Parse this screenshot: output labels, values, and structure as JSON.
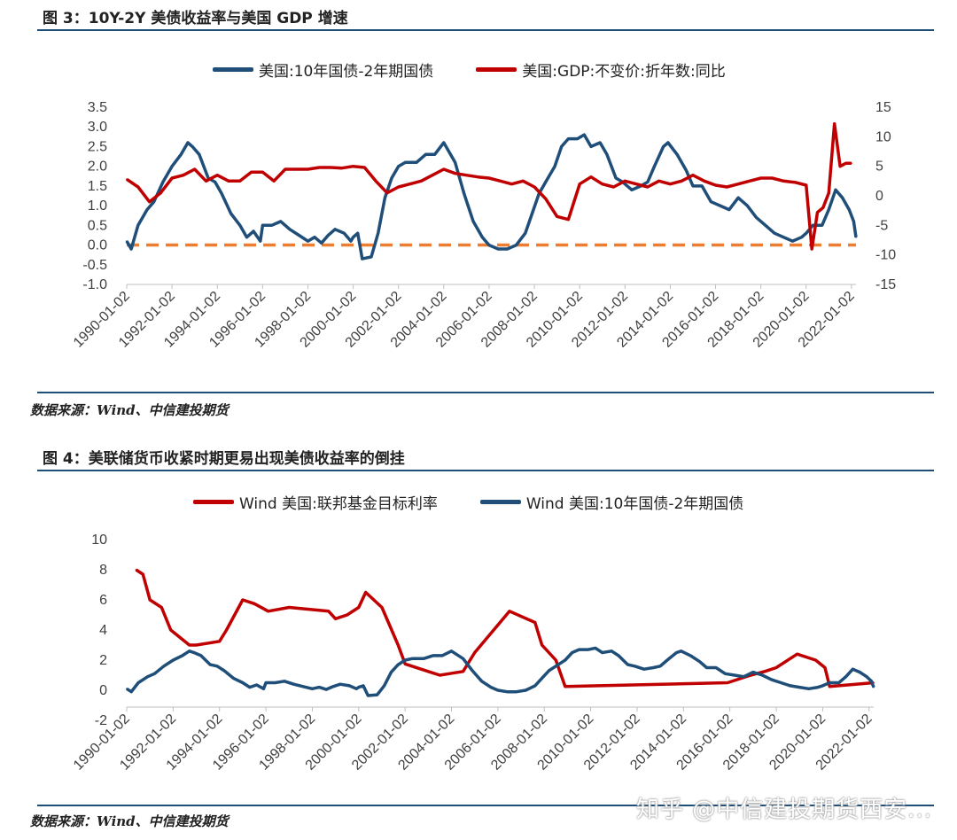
{
  "chart_data": [
    {
      "type": "line",
      "title": "图 3：10Y-2Y 美债收益率与美国 GDP 增速",
      "source": "数据来源：Wind、中信建投期货",
      "x_ticks": [
        "1990-01-02",
        "1992-01-02",
        "1994-01-02",
        "1996-01-02",
        "1998-01-02",
        "2000-01-02",
        "2002-01-02",
        "2004-01-02",
        "2006-01-02",
        "2008-01-02",
        "2010-01-02",
        "2012-01-02",
        "2014-01-02",
        "2016-01-02",
        "2018-01-02",
        "2020-01-02",
        "2022-01-02"
      ],
      "x_range": [
        1990.0,
        2022.2
      ],
      "left_axis": {
        "ylim": [
          -1.0,
          3.5
        ],
        "ticks": [
          "3.5",
          "3.0",
          "2.5",
          "2.0",
          "1.5",
          "1.0",
          "0.5",
          "0.0",
          "-0.5",
          "-1.0"
        ]
      },
      "right_axis": {
        "ylim": [
          -15,
          15
        ],
        "ticks": [
          "15",
          "10",
          "5",
          "0",
          "-5",
          "-10",
          "-15"
        ]
      },
      "reference_line": {
        "y": 0.0,
        "axis": "left",
        "style": "dashed",
        "color": "#ed7d31"
      },
      "series": [
        {
          "name": "美国:10年国债-2年期国债",
          "axis": "left",
          "color": "#1f4e79",
          "x": [
            1990.0,
            1990.2,
            1990.5,
            1990.9,
            1991.2,
            1991.6,
            1992.0,
            1992.4,
            1992.7,
            1992.9,
            1993.2,
            1993.6,
            1993.9,
            1994.2,
            1994.6,
            1995.0,
            1995.3,
            1995.6,
            1995.9,
            1996.0,
            1996.4,
            1996.8,
            1997.2,
            1997.6,
            1998.0,
            1998.3,
            1998.6,
            1998.9,
            1999.2,
            1999.6,
            1999.9,
            2000.0,
            2000.2,
            2000.4,
            2000.8,
            2001.1,
            2001.4,
            2001.7,
            2002.0,
            2002.3,
            2002.8,
            2003.2,
            2003.6,
            2004.0,
            2004.5,
            2004.9,
            2005.3,
            2005.7,
            2006.0,
            2006.4,
            2006.8,
            2007.2,
            2007.6,
            2007.9,
            2008.2,
            2008.5,
            2008.9,
            2009.2,
            2009.5,
            2009.9,
            2010.2,
            2010.5,
            2010.9,
            2011.2,
            2011.6,
            2011.9,
            2012.3,
            2012.7,
            2013.0,
            2013.3,
            2013.7,
            2013.9,
            2014.3,
            2014.7,
            2015.0,
            2015.4,
            2015.8,
            2016.2,
            2016.6,
            2017.0,
            2017.4,
            2017.8,
            2018.2,
            2018.6,
            2019.0,
            2019.4,
            2019.8,
            2020.0,
            2020.3,
            2020.7,
            2021.0,
            2021.3,
            2021.6,
            2021.9,
            2022.1,
            2022.2
          ],
          "values": [
            0.1,
            -0.1,
            0.5,
            0.9,
            1.1,
            1.6,
            2.0,
            2.3,
            2.6,
            2.5,
            2.3,
            1.7,
            1.6,
            1.3,
            0.8,
            0.5,
            0.2,
            0.35,
            0.1,
            0.5,
            0.5,
            0.6,
            0.4,
            0.25,
            0.1,
            0.2,
            0.05,
            0.25,
            0.4,
            0.3,
            0.1,
            0.2,
            0.3,
            -0.35,
            -0.3,
            0.3,
            1.2,
            1.7,
            2.0,
            2.1,
            2.1,
            2.3,
            2.3,
            2.6,
            2.1,
            1.3,
            0.6,
            0.2,
            0.0,
            -0.1,
            -0.1,
            0.0,
            0.3,
            0.8,
            1.3,
            1.6,
            2.0,
            2.5,
            2.7,
            2.7,
            2.8,
            2.5,
            2.6,
            2.3,
            1.7,
            1.6,
            1.4,
            1.5,
            1.6,
            2.0,
            2.5,
            2.6,
            2.3,
            1.9,
            1.5,
            1.5,
            1.1,
            1.0,
            0.9,
            1.2,
            1.0,
            0.7,
            0.5,
            0.3,
            0.2,
            0.1,
            0.2,
            0.3,
            0.5,
            0.5,
            0.9,
            1.4,
            1.2,
            0.9,
            0.6,
            0.2
          ]
        },
        {
          "name": "美国:GDP:不变价:折年数:同比",
          "axis": "right",
          "color": "#c00000",
          "x": [
            1990.0,
            1990.5,
            1991.0,
            1991.5,
            1992.0,
            1992.5,
            1993.0,
            1993.5,
            1994.0,
            1994.5,
            1995.0,
            1995.5,
            1996.0,
            1996.5,
            1997.0,
            1997.5,
            1998.0,
            1998.5,
            1999.0,
            1999.5,
            2000.0,
            2000.5,
            2001.0,
            2001.5,
            2002.0,
            2002.5,
            2003.0,
            2003.5,
            2004.0,
            2004.5,
            2005.0,
            2005.5,
            2006.0,
            2006.5,
            2007.0,
            2007.5,
            2008.0,
            2008.5,
            2009.0,
            2009.5,
            2010.0,
            2010.5,
            2011.0,
            2011.5,
            2012.0,
            2012.5,
            2013.0,
            2013.5,
            2014.0,
            2014.5,
            2015.0,
            2015.5,
            2016.0,
            2016.5,
            2017.0,
            2017.5,
            2018.0,
            2018.5,
            2019.0,
            2019.5,
            2020.0,
            2020.25,
            2020.5,
            2020.75,
            2021.0,
            2021.25,
            2021.5,
            2021.75,
            2022.0
          ],
          "values": [
            2.8,
            1.5,
            -1.0,
            0.5,
            3.0,
            3.5,
            4.5,
            2.5,
            3.5,
            2.5,
            2.5,
            4.0,
            4.0,
            2.5,
            4.5,
            4.5,
            4.5,
            4.8,
            4.8,
            4.7,
            5.0,
            4.8,
            2.5,
            0.5,
            1.5,
            2.0,
            2.5,
            3.5,
            4.5,
            3.8,
            3.5,
            3.2,
            3.0,
            2.5,
            2.0,
            2.5,
            1.5,
            -0.5,
            -3.5,
            -4.0,
            2.0,
            3.2,
            2.0,
            1.5,
            2.5,
            2.0,
            1.5,
            2.5,
            2.0,
            2.5,
            3.5,
            2.5,
            1.8,
            1.5,
            2.0,
            2.5,
            3.0,
            3.0,
            2.5,
            2.3,
            1.8,
            -9.0,
            -2.8,
            -2.0,
            0.5,
            12.2,
            5.0,
            5.5,
            5.5
          ]
        }
      ]
    },
    {
      "type": "line",
      "title": "图 4：美联储货币收紧时期更易出现美债收益率的倒挂",
      "source": "数据来源：Wind、中信建投期货",
      "x_ticks": [
        "1990-01-02",
        "1992-01-02",
        "1994-01-02",
        "1996-01-02",
        "1998-01-02",
        "2000-01-02",
        "2002-01-02",
        "2004-01-02",
        "2006-01-02",
        "2008-01-02",
        "2010-01-02",
        "2012-01-02",
        "2014-01-02",
        "2016-01-02",
        "2018-01-02",
        "2020-01-02",
        "2022-01-02"
      ],
      "x_range": [
        1990.0,
        2022.2
      ],
      "ylim": [
        -2,
        10
      ],
      "y_ticks": [
        "10",
        "8",
        "6",
        "4",
        "2",
        "0",
        "-2"
      ],
      "series": [
        {
          "name": "Wind 美国:联邦基金目标利率",
          "color": "#c00000",
          "x": [
            1990.4,
            1990.7,
            1991.0,
            1991.5,
            1991.9,
            1992.3,
            1992.7,
            1993.0,
            1994.0,
            1994.3,
            1995.0,
            1995.5,
            1996.1,
            1997.0,
            1998.7,
            1999.0,
            1999.5,
            2000.0,
            2000.3,
            2001.0,
            2001.7,
            2002.0,
            2003.0,
            2003.5,
            2004.5,
            2005.0,
            2006.5,
            2007.6,
            2007.9,
            2008.5,
            2008.9,
            2015.9,
            2016.9,
            2017.5,
            2018.0,
            2018.9,
            2019.7,
            2020.1,
            2020.3,
            2022.2
          ],
          "values": [
            8.0,
            7.7,
            6.0,
            5.5,
            4.0,
            3.5,
            3.0,
            3.0,
            3.25,
            4.0,
            6.0,
            5.75,
            5.25,
            5.5,
            5.25,
            4.75,
            5.0,
            5.5,
            6.5,
            5.5,
            3.0,
            1.75,
            1.25,
            1.0,
            1.25,
            2.5,
            5.25,
            4.5,
            3.0,
            2.0,
            0.25,
            0.5,
            1.0,
            1.25,
            1.5,
            2.4,
            2.0,
            1.5,
            0.25,
            0.5
          ]
        },
        {
          "name": "Wind 美国:10年国债-2年期国债",
          "color": "#1f4e79",
          "x": [
            1990.0,
            1990.2,
            1990.5,
            1990.9,
            1991.2,
            1991.6,
            1992.0,
            1992.4,
            1992.7,
            1992.9,
            1993.2,
            1993.6,
            1993.9,
            1994.2,
            1994.6,
            1995.0,
            1995.3,
            1995.6,
            1995.9,
            1996.0,
            1996.4,
            1996.8,
            1997.2,
            1997.6,
            1998.0,
            1998.3,
            1998.6,
            1998.9,
            1999.2,
            1999.6,
            1999.9,
            2000.0,
            2000.2,
            2000.4,
            2000.8,
            2001.1,
            2001.4,
            2001.7,
            2002.0,
            2002.3,
            2002.8,
            2003.2,
            2003.6,
            2004.0,
            2004.5,
            2004.9,
            2005.3,
            2005.7,
            2006.0,
            2006.4,
            2006.8,
            2007.2,
            2007.6,
            2007.9,
            2008.2,
            2008.5,
            2008.9,
            2009.2,
            2009.5,
            2009.9,
            2010.2,
            2010.5,
            2010.9,
            2011.2,
            2011.6,
            2011.9,
            2012.3,
            2012.7,
            2013.0,
            2013.3,
            2013.7,
            2013.9,
            2014.3,
            2014.7,
            2015.0,
            2015.4,
            2015.8,
            2016.2,
            2016.6,
            2017.0,
            2017.4,
            2017.8,
            2018.2,
            2018.6,
            2019.0,
            2019.4,
            2019.8,
            2020.0,
            2020.3,
            2020.7,
            2021.0,
            2021.3,
            2021.6,
            2021.9,
            2022.1,
            2022.2
          ],
          "values": [
            0.1,
            -0.1,
            0.5,
            0.9,
            1.1,
            1.6,
            2.0,
            2.3,
            2.6,
            2.5,
            2.3,
            1.7,
            1.6,
            1.3,
            0.8,
            0.5,
            0.2,
            0.35,
            0.1,
            0.5,
            0.5,
            0.6,
            0.4,
            0.25,
            0.1,
            0.2,
            0.05,
            0.25,
            0.4,
            0.3,
            0.1,
            0.2,
            0.3,
            -0.35,
            -0.3,
            0.3,
            1.2,
            1.7,
            2.0,
            2.1,
            2.1,
            2.3,
            2.3,
            2.6,
            2.1,
            1.3,
            0.6,
            0.2,
            0.0,
            -0.1,
            -0.1,
            0.0,
            0.3,
            0.8,
            1.3,
            1.6,
            2.0,
            2.5,
            2.7,
            2.7,
            2.8,
            2.5,
            2.6,
            2.3,
            1.7,
            1.6,
            1.4,
            1.5,
            1.6,
            2.0,
            2.5,
            2.6,
            2.3,
            1.9,
            1.5,
            1.5,
            1.1,
            1.0,
            0.9,
            1.2,
            1.0,
            0.7,
            0.5,
            0.3,
            0.2,
            0.1,
            0.2,
            0.3,
            0.5,
            0.5,
            0.9,
            1.4,
            1.2,
            0.9,
            0.6,
            0.2
          ]
        }
      ]
    }
  ],
  "watermark": "知乎 @中信建投期货西安..."
}
